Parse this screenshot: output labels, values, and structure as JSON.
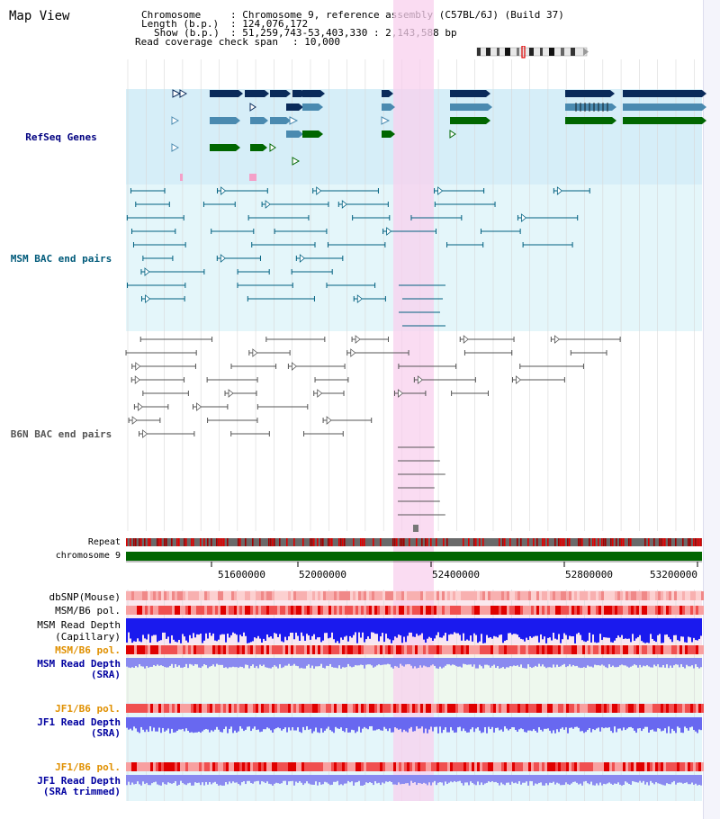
{
  "title": "Map View",
  "info": {
    "chromosome_key": "Chromosome",
    "chromosome_val": ": Chromosome 9, reference assembly (C57BL/6J) (Build 37)",
    "length_key": "Length (b.p.)",
    "length_val": ": 124,076,172",
    "show_key": "Show (b.p.)",
    "show_val": ": 51,259,743-53,403,330 : 2,143,588 bp",
    "coverage_key": "Read coverage check span",
    "coverage_val": ": 10,000"
  },
  "tracks": {
    "refseq": {
      "label": "RefSeq Genes",
      "color": "#000080"
    },
    "msm_bac": {
      "label": "MSM BAC end pairs",
      "color": "#005a7a"
    },
    "b6n_bac": {
      "label": "B6N BAC end pairs",
      "color": "#555555"
    },
    "repeat": {
      "label": "Repeat"
    },
    "chromosome": {
      "label": "chromosome 9"
    },
    "dbsnp": {
      "label": "dbSNP(Mouse)"
    },
    "msm_b6_pol_1": {
      "label": "MSM/B6 pol."
    },
    "msm_depth_cap": {
      "label_1": "MSM Read Depth",
      "label_2": "(Capillary)"
    },
    "msm_b6_pol_2": {
      "label": "MSM/B6 pol.",
      "color": "#e09000"
    },
    "msm_depth_sra": {
      "label_1": "MSM Read Depth",
      "label_2": "(SRA)",
      "color": "#0000a0"
    },
    "jf1_b6_pol_1": {
      "label": "JF1/B6 pol.",
      "color": "#e09000"
    },
    "jf1_depth_sra": {
      "label_1": "JF1 Read Depth",
      "label_2": "(SRA)",
      "color": "#0000a0"
    },
    "jf1_b6_pol_2": {
      "label": "JF1/B6 pol.",
      "color": "#e09000"
    },
    "jf1_depth_trim": {
      "label_1": "JF1 Read Depth",
      "label_2": "(SRA trimmed)",
      "color": "#0000a0"
    }
  },
  "axis": {
    "ticks": [
      "51600000",
      "52000000",
      "52400000",
      "52800000",
      "53200000"
    ]
  },
  "colors": {
    "refseq_bg": "#d6eef8",
    "msm_bg": "#e4f6fa",
    "highlight": "#f8d0ee",
    "gene_dark": "#0a2a5a",
    "gene_mid": "#4a8ab0",
    "gene_green": "#006600",
    "msm_line": "#006080",
    "b6n_line": "#555555",
    "chromosome": "#006600"
  }
}
